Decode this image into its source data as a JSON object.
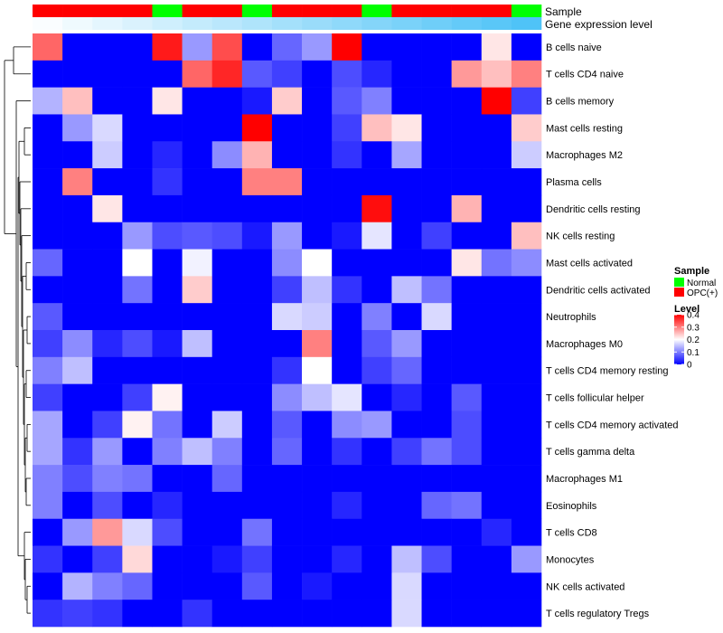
{
  "chart_data": {
    "type": "heatmap",
    "annotation_rows": [
      "Sample",
      "Gene expression level"
    ],
    "rows": [
      "B cells naive",
      "T cells CD4 naive",
      "B cells memory",
      "Mast cells resting",
      "Macrophages M2",
      "Plasma cells",
      "Dendritic cells resting",
      "NK cells resting",
      "Mast cells activated",
      "Dendritic cells activated",
      "Neutrophils",
      "Macrophages M0",
      "T cells CD4 memory resting",
      "T cells follicular helper",
      "T cells CD4 memory activated",
      "T cells gamma delta",
      "Macrophages M1",
      "Eosinophils",
      "T cells CD8",
      "Monocytes",
      "NK cells activated",
      "T cells regulatory  Tregs"
    ],
    "sample_groups": [
      "OPC(+)",
      "OPC(+)",
      "OPC(+)",
      "OPC(+)",
      "Normal",
      "OPC(+)",
      "OPC(+)",
      "Normal",
      "OPC(+)",
      "OPC(+)",
      "OPC(+)",
      "Normal",
      "OPC(+)",
      "OPC(+)",
      "OPC(+)",
      "OPC(+)",
      "Normal"
    ],
    "expression_level": [
      0.02,
      0.06,
      0.1,
      0.14,
      0.18,
      0.22,
      0.26,
      0.3,
      0.34,
      0.38,
      0.42,
      0.46,
      0.5,
      0.54,
      0.58,
      0.62,
      0.66
    ],
    "values": [
      [
        0.32,
        0,
        0,
        0,
        0.38,
        0.12,
        0.34,
        0,
        0.08,
        0.12,
        0.4,
        0,
        0,
        0,
        0,
        0.22,
        0
      ],
      [
        0,
        0,
        0,
        0,
        0,
        0.32,
        0.37,
        0.07,
        0.05,
        0,
        0.06,
        0.03,
        0,
        0,
        0.28,
        0.25,
        0.3
      ],
      [
        0.14,
        0.25,
        0,
        0,
        0.22,
        0,
        0,
        0.02,
        0.24,
        0,
        0.07,
        0.1,
        0,
        0,
        0,
        0.4,
        0.05
      ],
      [
        0,
        0.12,
        0.17,
        0,
        0,
        0,
        0,
        0.4,
        0,
        0,
        0.05,
        0.25,
        0.22,
        0,
        0,
        0,
        0.24
      ],
      [
        0,
        0,
        0.16,
        0,
        0.03,
        0,
        0.11,
        0.26,
        0,
        0,
        0.04,
        0,
        0.13,
        0,
        0,
        0,
        0.16
      ],
      [
        0,
        0.3,
        0,
        0,
        0.04,
        0,
        0,
        0.3,
        0.3,
        0,
        0,
        0,
        0,
        0,
        0,
        0,
        0
      ],
      [
        0,
        0,
        0.22,
        0,
        0,
        0,
        0,
        0,
        0,
        0,
        0,
        0.39,
        0,
        0,
        0.26,
        0,
        0
      ],
      [
        0,
        0,
        0,
        0.12,
        0.06,
        0.07,
        0.06,
        0.02,
        0.12,
        0,
        0.02,
        0.18,
        0,
        0.05,
        0,
        0,
        0.25
      ],
      [
        0.08,
        0,
        0,
        0.2,
        0,
        0.19,
        0,
        0,
        0.11,
        0.2,
        0,
        0,
        0,
        0,
        0.22,
        0.09,
        0.11
      ],
      [
        0,
        0,
        0,
        0.09,
        0,
        0.24,
        0,
        0,
        0.05,
        0.15,
        0.04,
        0,
        0.15,
        0.09,
        0,
        0,
        0
      ],
      [
        0.07,
        0,
        0,
        0,
        0,
        0,
        0,
        0,
        0.17,
        0.16,
        0,
        0.1,
        0,
        0.17,
        0,
        0,
        0
      ],
      [
        0.05,
        0.11,
        0.03,
        0.06,
        0.02,
        0.15,
        0,
        0,
        0,
        0.3,
        0,
        0.07,
        0.12,
        0,
        0,
        0,
        0
      ],
      [
        0.1,
        0.15,
        0,
        0,
        0,
        0,
        0,
        0,
        0.04,
        0.2,
        0,
        0.05,
        0.08,
        0,
        0,
        0,
        0
      ],
      [
        0.05,
        0,
        0,
        0.05,
        0.21,
        0,
        0,
        0,
        0.11,
        0.15,
        0.18,
        0,
        0.03,
        0,
        0.07,
        0,
        0
      ],
      [
        0.13,
        0,
        0.05,
        0.21,
        0.09,
        0,
        0.16,
        0,
        0.07,
        0,
        0.11,
        0.12,
        0,
        0,
        0.06,
        0,
        0
      ],
      [
        0.13,
        0.04,
        0.12,
        0,
        0.1,
        0.15,
        0.1,
        0,
        0.08,
        0,
        0.04,
        0,
        0.05,
        0.09,
        0.06,
        0,
        0
      ],
      [
        0.1,
        0.06,
        0.1,
        0.09,
        0,
        0,
        0.08,
        0,
        0,
        0,
        0,
        0,
        0,
        0,
        0,
        0,
        0
      ],
      [
        0.1,
        0,
        0.06,
        0,
        0.03,
        0,
        0,
        0,
        0,
        0,
        0.03,
        0,
        0,
        0.08,
        0.09,
        0,
        0
      ],
      [
        0,
        0.12,
        0.28,
        0.17,
        0.06,
        0,
        0,
        0.09,
        0,
        0,
        0,
        0,
        0,
        0,
        0,
        0.03,
        0
      ],
      [
        0.04,
        0,
        0.05,
        0.23,
        0,
        0,
        0.02,
        0.05,
        0,
        0,
        0.03,
        0,
        0.15,
        0.06,
        0,
        0,
        0.12
      ],
      [
        0,
        0.14,
        0.1,
        0.08,
        0,
        0,
        0,
        0.07,
        0,
        0.02,
        0,
        0,
        0.17,
        0,
        0,
        0,
        0
      ],
      [
        0.04,
        0.05,
        0.04,
        0,
        0,
        0.04,
        0,
        0,
        0,
        0,
        0,
        0,
        0.17,
        0,
        0,
        0,
        0
      ]
    ],
    "legend": {
      "sample": {
        "title": "Sample",
        "items": [
          {
            "label": "Normal",
            "color": "#00ff00"
          },
          {
            "label": "OPC(+)",
            "color": "#ff0000"
          }
        ]
      },
      "level": {
        "title": "Level",
        "ticks": [
          0.4,
          0.3,
          0.2,
          0.1,
          0
        ],
        "tick_labels": [
          "0.4",
          "0.3",
          "0.2",
          "0.1",
          "0"
        ],
        "range": [
          0,
          0.4
        ]
      }
    },
    "colors": {
      "low": "#0000ff",
      "mid": "#ffffff",
      "high": "#ff0000",
      "annotation_low": "#ffffff",
      "annotation_high": "#4fc3f7"
    }
  }
}
